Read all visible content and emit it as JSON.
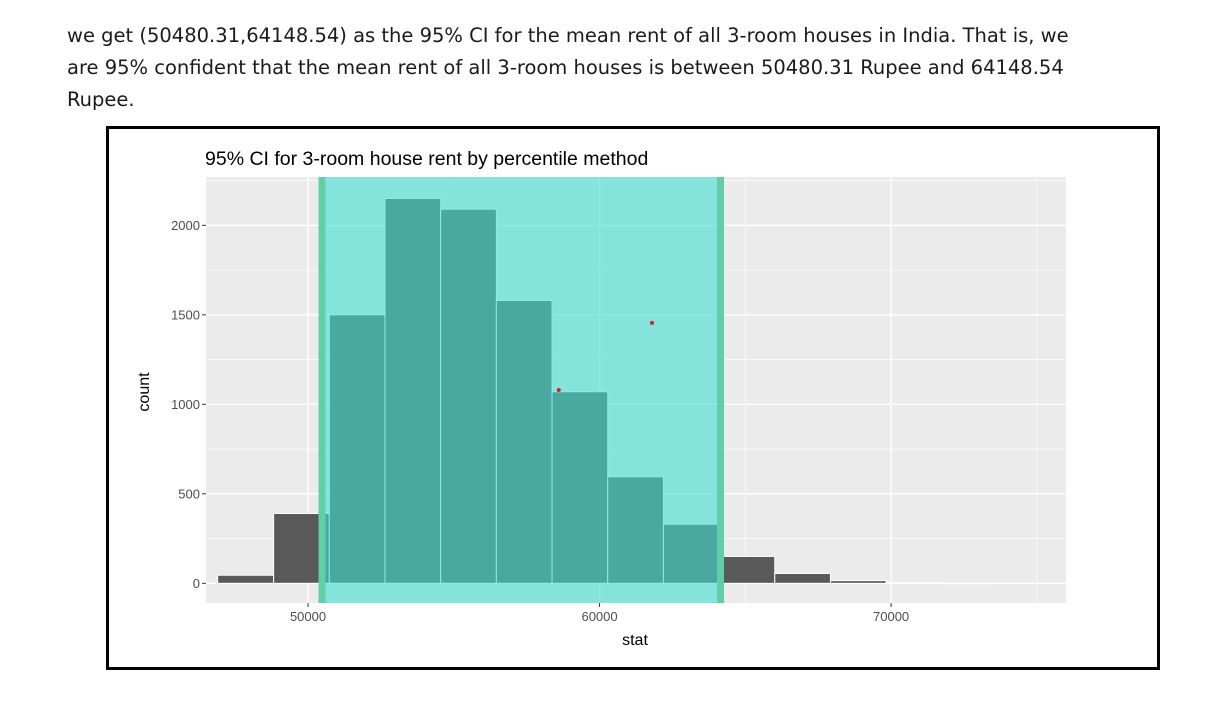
{
  "paragraph": {
    "line1": "we get (50480.31,64148.54) as the 95% CI for the mean rent of all 3-room houses in India. That is, we",
    "line2": "are 95% confident that the mean rent of all 3-room houses is between 50480.31 Rupee and 64148.54",
    "line3": "Rupee."
  },
  "chart_data": {
    "type": "bar",
    "title": "95% CI for 3-room house rent  by percentile method",
    "xlabel": "stat",
    "ylabel": "count",
    "xlim": [
      46500,
      76000
    ],
    "ylim": [
      -110,
      2270
    ],
    "x_ticks": [
      50000,
      60000,
      70000
    ],
    "x_tick_labels": [
      "50000",
      "60000",
      "70000"
    ],
    "y_ticks": [
      0,
      500,
      1000,
      1500,
      2000
    ],
    "y_tick_labels": [
      "0",
      "500",
      "1000",
      "1500",
      "2000"
    ],
    "grid": true,
    "bins": [
      {
        "x0": 46900,
        "x1": 48820,
        "count": 45
      },
      {
        "x0": 48820,
        "x1": 50730,
        "count": 390
      },
      {
        "x0": 50730,
        "x1": 52640,
        "count": 1500
      },
      {
        "x0": 52640,
        "x1": 54550,
        "count": 2150
      },
      {
        "x0": 54550,
        "x1": 56460,
        "count": 2090
      },
      {
        "x0": 56460,
        "x1": 58370,
        "count": 1580
      },
      {
        "x0": 58370,
        "x1": 60280,
        "count": 1070
      },
      {
        "x0": 60280,
        "x1": 62190,
        "count": 595
      },
      {
        "x0": 62190,
        "x1": 64100,
        "count": 330
      },
      {
        "x0": 64100,
        "x1": 66010,
        "count": 150
      },
      {
        "x0": 66010,
        "x1": 67920,
        "count": 55
      },
      {
        "x0": 67920,
        "x1": 69830,
        "count": 15
      },
      {
        "x0": 69830,
        "x1": 71740,
        "count": 4
      },
      {
        "x0": 71740,
        "x1": 73650,
        "count": 1
      }
    ],
    "ci": {
      "lower": 50480.31,
      "upper": 64148.54
    },
    "points": [
      {
        "x": 58600,
        "y": 1080
      },
      {
        "x": 61800,
        "y": 1455
      }
    ],
    "colors": {
      "panel": "#ebebeb",
      "grid": "#ffffff",
      "bar": "#595959",
      "ci_shade": "#40e0d0",
      "ci_line": "#60cfa6",
      "point": "#e41a1c"
    }
  }
}
